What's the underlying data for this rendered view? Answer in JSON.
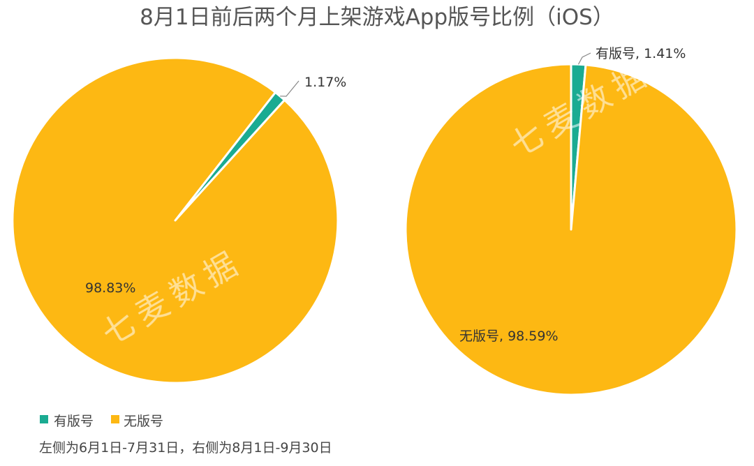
{
  "chart_data": {
    "title": "8月1日前后两个月上架游戏App版号比例（iOS）",
    "type": "pie",
    "legend": {
      "position": "bottom-left",
      "items": [
        {
          "name": "有版号",
          "color": "#1aab92"
        },
        {
          "name": "无版号",
          "color": "#fdb813"
        }
      ]
    },
    "charts": [
      {
        "slices": [
          {
            "name": "有版号",
            "value": 1.17,
            "label": "1.17%",
            "color": "#1aab92"
          },
          {
            "name": "无版号",
            "value": 98.83,
            "label": "98.83%",
            "color": "#fdb813"
          }
        ]
      },
      {
        "slices": [
          {
            "name": "有版号",
            "value": 1.41,
            "label": "有版号, 1.41%",
            "color": "#1aab92"
          },
          {
            "name": "无版号",
            "value": 98.59,
            "label": "无版号, 98.59%",
            "color": "#fdb813"
          }
        ]
      }
    ],
    "footnote": "左侧为6月1日-7月31日，右侧为8月1日-9月30日"
  },
  "watermark": "七麦数据"
}
